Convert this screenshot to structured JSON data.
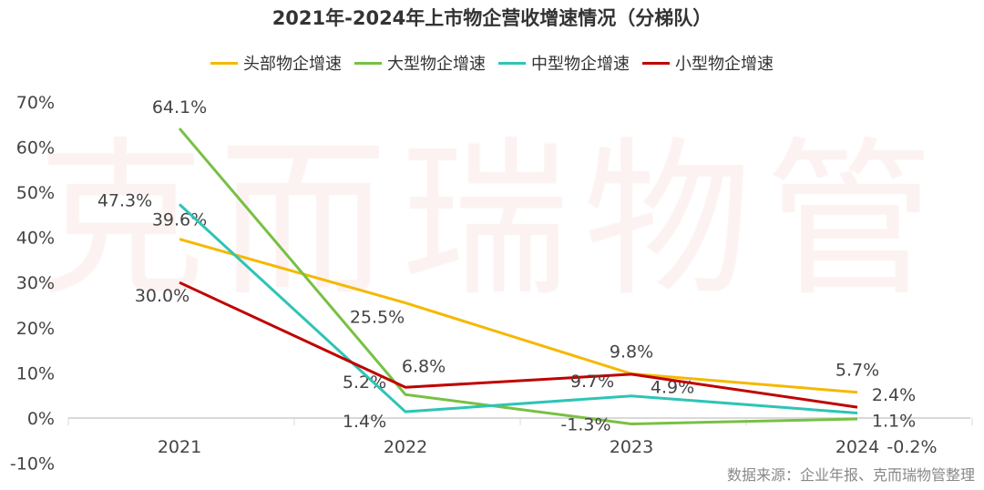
{
  "chart_data": {
    "type": "line",
    "title": "2021年-2024年上市物企营收增速情况（分梯队）",
    "categories": [
      "2021",
      "2022",
      "2023",
      "2024"
    ],
    "ylim": [
      -10,
      70
    ],
    "yticks": [
      "-10%",
      "0%",
      "10%",
      "20%",
      "30%",
      "40%",
      "50%",
      "60%",
      "70%"
    ],
    "legend_position": "top",
    "grid": false,
    "series": [
      {
        "name": "头部物企增速",
        "color": "#f5b800",
        "values": [
          39.6,
          25.5,
          9.8,
          5.7
        ],
        "labels": [
          "39.6%",
          "25.5%",
          "9.8%",
          "5.7%"
        ]
      },
      {
        "name": "大型物企增速",
        "color": "#78c043",
        "values": [
          64.1,
          5.2,
          -1.3,
          -0.2
        ],
        "labels": [
          "64.1%",
          "5.2%",
          "-1.3%",
          "-0.2%"
        ]
      },
      {
        "name": "中型物企增速",
        "color": "#2ec4b6",
        "values": [
          47.3,
          1.4,
          4.9,
          1.1
        ],
        "labels": [
          "47.3%",
          "1.4%",
          "4.9%",
          "1.1%"
        ]
      },
      {
        "name": "小型物企增速",
        "color": "#c00000",
        "values": [
          30.0,
          6.8,
          9.7,
          2.4
        ],
        "labels": [
          "30.0%",
          "6.8%",
          "9.7%",
          "2.4%"
        ]
      }
    ]
  },
  "watermark": "克而瑞物管",
  "source": "数据来源：企业年报、克而瑞物管整理"
}
